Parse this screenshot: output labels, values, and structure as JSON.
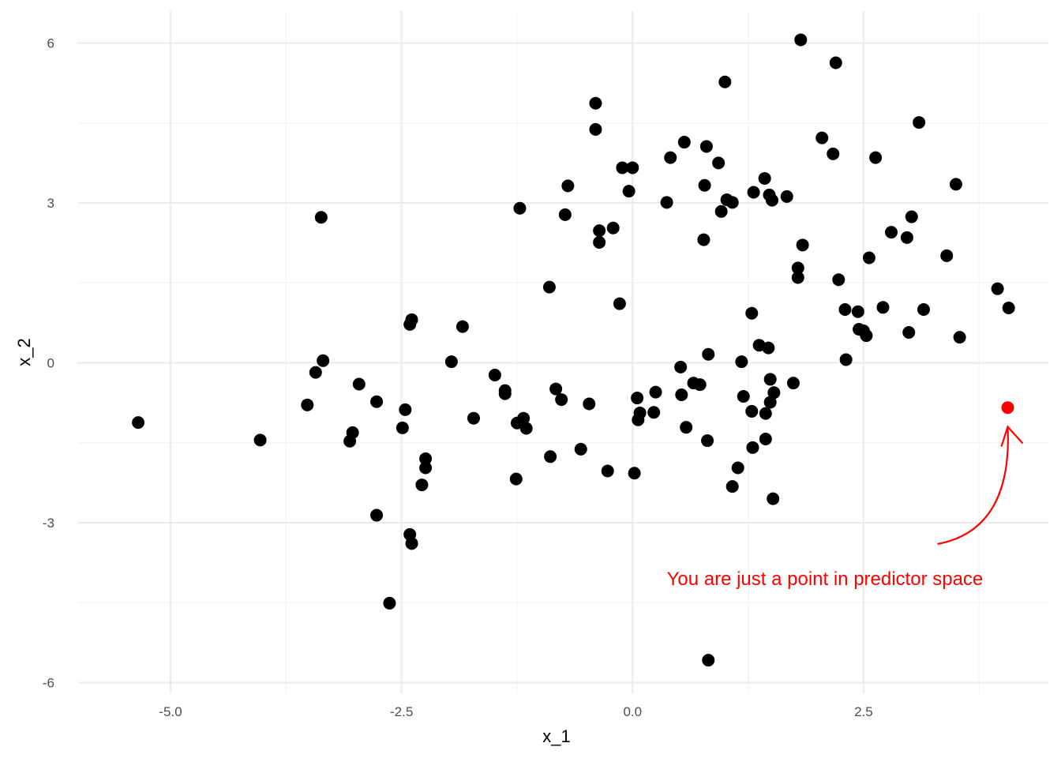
{
  "chart_data": {
    "type": "scatter",
    "title": "",
    "xlabel": "x_1",
    "ylabel": "x_2",
    "xlim": [
      -6.0,
      4.5
    ],
    "ylim": [
      -6.2,
      6.6
    ],
    "x_ticks": [
      -5.0,
      -2.5,
      0.0,
      2.5
    ],
    "x_tick_labels": [
      "-5.0",
      "-2.5",
      "0.0",
      "2.5"
    ],
    "y_ticks": [
      -6,
      -3,
      0,
      3,
      6
    ],
    "y_tick_labels": [
      "-6",
      "-3",
      "0",
      "3",
      "6"
    ],
    "grid": true,
    "point_color": "#000000",
    "highlight_color": "#ff0000",
    "series": [
      {
        "points": [
          [
            -5.35,
            -1.12
          ],
          [
            -4.03,
            -1.45
          ],
          [
            -3.52,
            -0.79
          ],
          [
            -3.43,
            -0.18
          ],
          [
            -3.37,
            2.73
          ],
          [
            -3.35,
            0.04
          ],
          [
            -3.06,
            -1.47
          ],
          [
            -3.03,
            -1.31
          ],
          [
            -2.96,
            -0.4
          ],
          [
            -2.77,
            -0.73
          ],
          [
            -2.77,
            -2.86
          ],
          [
            -2.63,
            -4.51
          ],
          [
            -2.49,
            -1.22
          ],
          [
            -2.46,
            -0.88
          ],
          [
            -2.41,
            0.72
          ],
          [
            -2.39,
            0.81
          ],
          [
            -2.41,
            -3.22
          ],
          [
            -2.39,
            -3.39
          ],
          [
            -2.28,
            -2.29
          ],
          [
            -2.24,
            -1.8
          ],
          [
            -2.24,
            -1.97
          ],
          [
            -1.96,
            0.02
          ],
          [
            -1.84,
            0.68
          ],
          [
            -1.72,
            -1.04
          ],
          [
            -1.49,
            -0.23
          ],
          [
            -1.38,
            -0.52
          ],
          [
            -1.38,
            -0.58
          ],
          [
            -1.26,
            -2.18
          ],
          [
            -1.25,
            -1.13
          ],
          [
            -1.22,
            2.9
          ],
          [
            -1.18,
            -1.04
          ],
          [
            -1.15,
            -1.23
          ],
          [
            -0.9,
            1.42
          ],
          [
            -0.89,
            -1.76
          ],
          [
            -0.83,
            -0.49
          ],
          [
            -0.77,
            -0.69
          ],
          [
            -0.73,
            2.78
          ],
          [
            -0.7,
            3.32
          ],
          [
            -0.56,
            -1.62
          ],
          [
            -0.47,
            -0.77
          ],
          [
            -0.4,
            4.87
          ],
          [
            -0.4,
            4.38
          ],
          [
            -0.36,
            2.48
          ],
          [
            -0.36,
            2.26
          ],
          [
            -0.27,
            -2.03
          ],
          [
            -0.21,
            2.53
          ],
          [
            -0.14,
            1.11
          ],
          [
            -0.11,
            3.66
          ],
          [
            -0.04,
            3.22
          ],
          [
            0.0,
            3.66
          ],
          [
            0.02,
            -2.07
          ],
          [
            0.05,
            -0.66
          ],
          [
            0.06,
            -1.07
          ],
          [
            0.08,
            -0.94
          ],
          [
            0.23,
            -0.93
          ],
          [
            0.25,
            -0.55
          ],
          [
            0.37,
            3.01
          ],
          [
            0.41,
            3.85
          ],
          [
            0.52,
            -0.08
          ],
          [
            0.53,
            -0.6
          ],
          [
            0.56,
            4.14
          ],
          [
            0.58,
            -1.21
          ],
          [
            0.66,
            -0.38
          ],
          [
            0.73,
            -0.41
          ],
          [
            0.77,
            2.31
          ],
          [
            0.78,
            3.33
          ],
          [
            0.8,
            4.06
          ],
          [
            0.81,
            -1.46
          ],
          [
            0.82,
            0.16
          ],
          [
            0.82,
            -5.58
          ],
          [
            0.93,
            3.75
          ],
          [
            0.96,
            2.84
          ],
          [
            1.0,
            5.27
          ],
          [
            1.02,
            3.06
          ],
          [
            1.08,
            3.01
          ],
          [
            1.08,
            -2.32
          ],
          [
            1.14,
            -1.97
          ],
          [
            1.18,
            0.02
          ],
          [
            1.2,
            -0.63
          ],
          [
            1.29,
            0.93
          ],
          [
            1.29,
            -0.91
          ],
          [
            1.3,
            -1.59
          ],
          [
            1.31,
            3.2
          ],
          [
            1.37,
            0.33
          ],
          [
            1.43,
            3.46
          ],
          [
            1.44,
            -0.95
          ],
          [
            1.44,
            -1.43
          ],
          [
            1.47,
            0.28
          ],
          [
            1.48,
            3.15
          ],
          [
            1.49,
            -0.31
          ],
          [
            1.49,
            -0.74
          ],
          [
            1.51,
            3.05
          ],
          [
            1.52,
            -2.55
          ],
          [
            1.53,
            -0.56
          ],
          [
            1.67,
            3.12
          ],
          [
            1.74,
            -0.38
          ],
          [
            1.79,
            1.6
          ],
          [
            1.79,
            1.78
          ],
          [
            1.82,
            6.06
          ],
          [
            1.84,
            2.21
          ],
          [
            2.05,
            4.22
          ],
          [
            2.17,
            3.92
          ],
          [
            2.2,
            5.63
          ],
          [
            2.23,
            1.56
          ],
          [
            2.3,
            1.0
          ],
          [
            2.31,
            0.06
          ],
          [
            2.44,
            0.96
          ],
          [
            2.45,
            0.63
          ],
          [
            2.5,
            0.6
          ],
          [
            2.53,
            0.51
          ],
          [
            2.56,
            1.97
          ],
          [
            2.63,
            3.85
          ],
          [
            2.71,
            1.04
          ],
          [
            2.8,
            2.45
          ],
          [
            2.97,
            2.35
          ],
          [
            2.99,
            0.57
          ],
          [
            3.02,
            2.74
          ],
          [
            3.1,
            4.51
          ],
          [
            3.15,
            1.0
          ],
          [
            3.4,
            2.01
          ],
          [
            3.5,
            3.35
          ],
          [
            3.54,
            0.48
          ],
          [
            3.95,
            1.39
          ],
          [
            4.07,
            1.03
          ]
        ]
      },
      {
        "points": [
          [
            4.06,
            -0.84
          ]
        ]
      }
    ],
    "annotation": {
      "text": "You are just a point in predictor space",
      "x": 0.37,
      "y": -4.05,
      "color": "#ff0000",
      "arrow_from": [
        3.3,
        -3.4
      ],
      "arrow_to": [
        4.06,
        -1.2
      ]
    }
  }
}
